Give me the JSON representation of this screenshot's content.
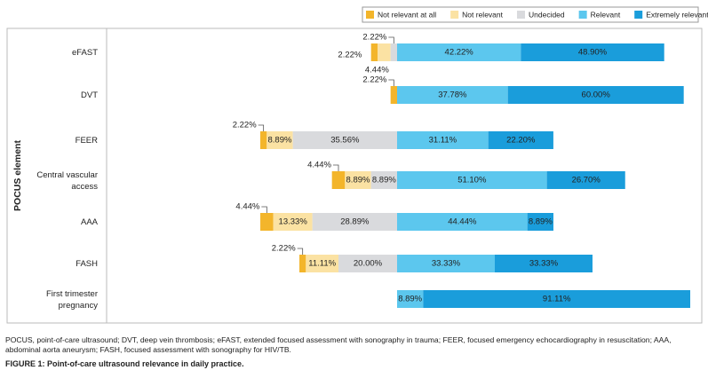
{
  "chart_data": {
    "type": "diverging-bar",
    "y_label": "POCUS element",
    "categories": [
      "eFAST",
      "DVT",
      "FEER",
      "Central vascular access",
      "AAA",
      "FASH",
      "First trimester pregnancy"
    ],
    "negative_series": 3,
    "series": [
      {
        "name": "Not relevant at all",
        "color": "#f3b52b",
        "values": [
          2.22,
          2.22,
          2.22,
          4.44,
          4.44,
          2.22,
          null
        ],
        "value_labels": [
          "2.22%",
          "2.22%",
          "2.22%",
          "4.44%",
          "4.44%",
          "2.22%",
          null
        ]
      },
      {
        "name": "Not relevant",
        "color": "#fbe2a3",
        "values": [
          4.44,
          null,
          8.89,
          8.89,
          13.33,
          11.11,
          null
        ],
        "value_labels": [
          "4.44%",
          null,
          "8.89%",
          "8.89%",
          "13.33%",
          "11.11%",
          null
        ]
      },
      {
        "name": "Undecided",
        "color": "#d9dadd",
        "values": [
          2.22,
          null,
          35.56,
          8.89,
          28.89,
          20.0,
          null
        ],
        "value_labels": [
          "2.22%",
          null,
          "35.56%",
          "8.89%",
          "28.89%",
          "20.00%",
          null
        ]
      },
      {
        "name": "Relevant",
        "color": "#5cc7ee",
        "values": [
          42.22,
          37.78,
          31.11,
          51.1,
          44.44,
          33.33,
          8.89
        ],
        "value_labels": [
          "42.22%",
          "37.78%",
          "31.11%",
          "51.10%",
          "44.44%",
          "33.33%",
          "8.89%"
        ]
      },
      {
        "name": "Extremely relevant",
        "color": "#1a9ddb",
        "values": [
          48.9,
          60.0,
          22.2,
          26.7,
          8.89,
          33.33,
          91.11
        ],
        "value_labels": [
          "48.90%",
          "60.00%",
          "22.20%",
          "26.70%",
          "8.89%",
          "33.33%",
          "91.11%"
        ]
      }
    ],
    "footnote": "POCUS, point-of-care ultrasound; DVT, deep vein thrombosis; eFAST, extended focused assessment with sonography in trauma; FEER, focused emergency echocardiography in resuscitation; AAA, abdominal aorta aneurysm; FASH, focused assessment with sonography for HIV/TB.",
    "caption": "FIGURE 1: Point-of-care ultrasound relevance in daily practice."
  }
}
